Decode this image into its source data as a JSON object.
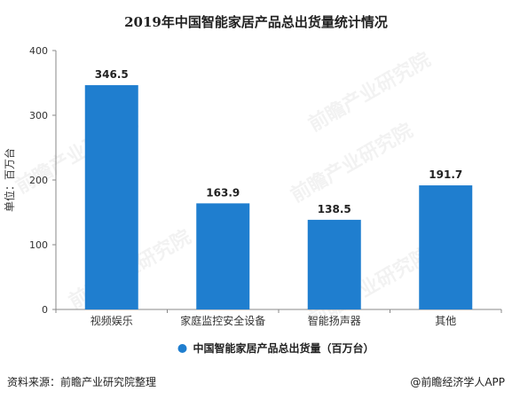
{
  "colors": {
    "bar": "#1F7ECF",
    "axis": "#888888",
    "grid": "#e6e6e6",
    "text": "#333333"
  },
  "chart_data": {
    "type": "bar",
    "title": "2019年中国智能家居产品总出货量统计情况",
    "ylabel": "单位：百万台",
    "xlabel": "",
    "categories": [
      "视频娱乐",
      "家庭监控安全设备",
      "智能扬声器",
      "其他"
    ],
    "series": [
      {
        "name": "中国智能家居产品总出货量（百万台）",
        "values": [
          346.5,
          163.9,
          138.5,
          191.7
        ]
      }
    ],
    "data_labels": [
      "346.5",
      "163.9",
      "138.5",
      "191.7"
    ],
    "ylim": [
      0,
      400
    ],
    "yticks": [
      0,
      100,
      200,
      300,
      400
    ],
    "grid": false,
    "legend_position": "bottom"
  },
  "footer": {
    "source": "资料来源：前瞻产业研究院整理",
    "brand": "@前瞻经济学人APP"
  },
  "watermark": {
    "text": "前瞻产业研究院"
  }
}
